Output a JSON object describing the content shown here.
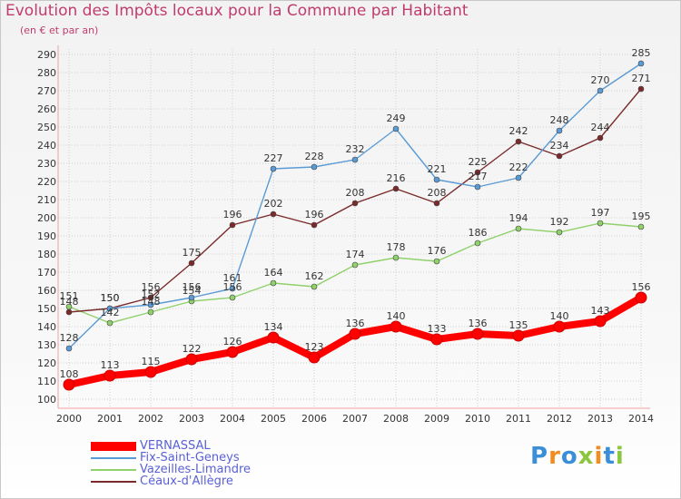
{
  "title": "Evolution des Impôts locaux pour la Commune par Habitant",
  "subtitle": "(en € et par an)",
  "logo": "Proxiti",
  "chart_data": {
    "type": "line",
    "title": "Evolution des Impôts locaux pour la Commune par Habitant",
    "subtitle": "(en € et par an)",
    "xlabel": "",
    "ylabel": "",
    "x": [
      "2000",
      "2001",
      "2002",
      "2003",
      "2004",
      "2005",
      "2006",
      "2007",
      "2008",
      "2009",
      "2010",
      "2011",
      "2012",
      "2013",
      "2014"
    ],
    "ylim": [
      100,
      290
    ],
    "yticks": [
      100,
      110,
      120,
      130,
      140,
      150,
      160,
      170,
      180,
      190,
      200,
      210,
      220,
      230,
      240,
      250,
      260,
      270,
      280,
      290
    ],
    "grid": true,
    "legend_position": "bottom-left",
    "series": [
      {
        "name": "VERNASSAL",
        "color": "#ff0000",
        "values": [
          108,
          113,
          115,
          122,
          126,
          134,
          123,
          136,
          140,
          133,
          136,
          135,
          140,
          143,
          156
        ]
      },
      {
        "name": "Fix-Saint-Geneys",
        "color": "#5b9bd5",
        "values": [
          128,
          150,
          152,
          156,
          161,
          227,
          228,
          232,
          249,
          221,
          217,
          222,
          248,
          270,
          285
        ]
      },
      {
        "name": "Vazeilles-Limandre",
        "color": "#8fd16a",
        "values": [
          151,
          142,
          148,
          154,
          156,
          164,
          162,
          174,
          178,
          176,
          186,
          194,
          192,
          197,
          195
        ]
      },
      {
        "name": "Céaux-d'Allègre",
        "color": "#7a2a2a",
        "values": [
          148,
          150,
          156,
          175,
          196,
          202,
          196,
          208,
          216,
          208,
          225,
          242,
          234,
          244,
          271
        ]
      }
    ]
  }
}
